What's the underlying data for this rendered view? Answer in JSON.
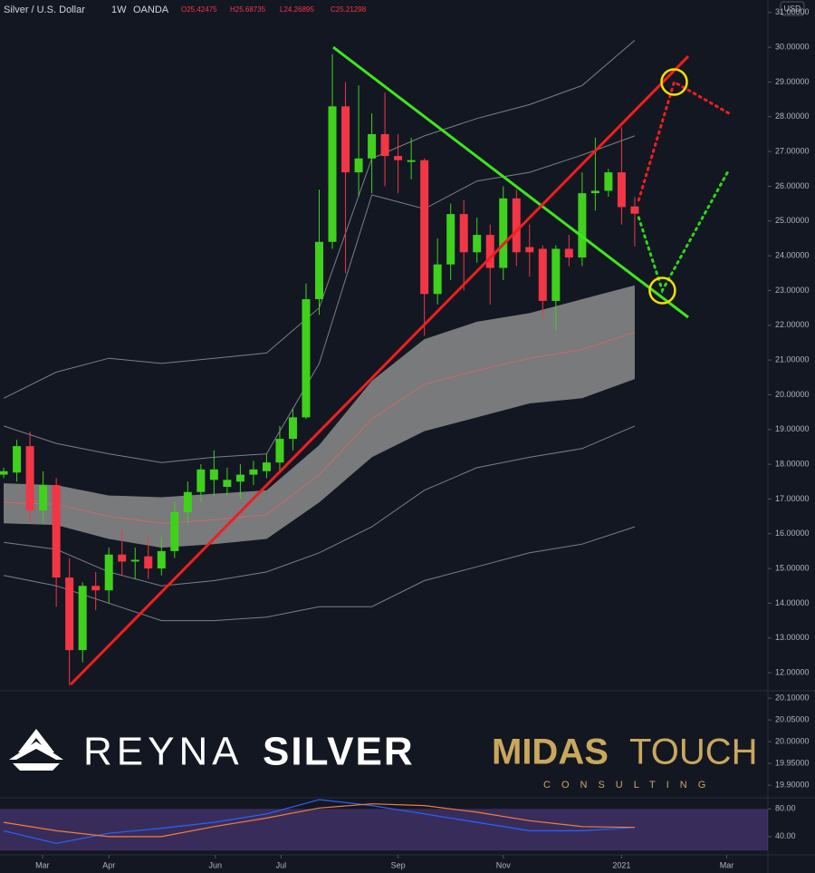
{
  "header": {
    "symbol": "Silver / U.S. Dollar",
    "interval": "1W",
    "source": "OANDA",
    "ohlc": [
      "O25.42475",
      "H25.68735",
      "L24.26895",
      "C25.21298"
    ]
  },
  "currency": "USD",
  "logos": {
    "reyna": [
      "REYNA",
      "SILVER"
    ],
    "midas": [
      "MIDAS",
      "TOUCH"
    ],
    "consulting": "CONSULTING"
  },
  "chart_data": [
    {
      "type": "candlestick",
      "up_color": "#3fd11c",
      "down_color": "#f23645",
      "open": [
        17.7,
        17.76,
        18.52,
        16.67,
        17.4,
        14.74,
        12.65,
        14.5,
        14.37,
        15.4,
        15.2,
        15.35,
        15.0,
        15.5,
        16.62,
        17.2,
        17.55,
        17.35,
        17.5,
        17.7,
        17.8,
        18.05,
        18.73,
        19.35,
        22.75,
        24.4,
        28.3,
        26.4,
        26.8,
        27.5,
        26.87,
        26.7,
        26.75,
        22.9,
        23.75,
        25.2,
        24.1,
        24.6,
        23.65,
        25.65,
        24.25,
        24.2,
        22.7,
        24.2,
        23.95,
        25.8,
        25.87,
        26.4,
        25.42
      ],
      "high": [
        17.9,
        18.7,
        18.94,
        17.8,
        17.6,
        15.3,
        14.6,
        14.9,
        15.6,
        16.1,
        15.6,
        15.9,
        15.9,
        16.9,
        17.5,
        18.0,
        18.4,
        17.9,
        18.0,
        18.1,
        18.3,
        19.1,
        19.6,
        23.2,
        25.9,
        29.8,
        29.0,
        28.9,
        28.1,
        28.7,
        27.5,
        27.4,
        26.8,
        24.5,
        25.5,
        25.6,
        25.1,
        24.9,
        26.0,
        25.9,
        24.9,
        24.3,
        24.3,
        24.6,
        26.4,
        27.4,
        26.5,
        27.7,
        25.69
      ],
      "low": [
        17.6,
        17.5,
        16.35,
        16.3,
        13.9,
        11.64,
        12.3,
        13.8,
        14.0,
        14.8,
        14.7,
        14.7,
        14.8,
        15.3,
        16.3,
        16.9,
        17.1,
        17.1,
        17.0,
        17.4,
        17.6,
        17.8,
        18.4,
        19.3,
        22.3,
        24.2,
        23.5,
        25.7,
        25.8,
        26.0,
        25.8,
        26.2,
        21.7,
        22.6,
        23.3,
        23.0,
        23.8,
        22.6,
        23.3,
        23.7,
        23.4,
        22.2,
        21.85,
        23.7,
        23.7,
        25.3,
        25.7,
        24.9,
        24.27
      ],
      "close": [
        17.8,
        18.52,
        16.67,
        17.4,
        14.74,
        12.65,
        14.5,
        14.37,
        15.4,
        15.2,
        15.25,
        15.0,
        15.5,
        16.62,
        17.2,
        17.85,
        17.85,
        17.55,
        17.7,
        17.85,
        18.05,
        18.73,
        19.35,
        22.75,
        24.4,
        28.3,
        26.4,
        26.8,
        27.5,
        26.87,
        26.75,
        26.75,
        22.9,
        23.75,
        25.2,
        24.1,
        24.6,
        23.65,
        25.65,
        24.1,
        24.1,
        22.7,
        24.2,
        23.95,
        25.8,
        25.87,
        26.4,
        25.4,
        25.21
      ],
      "xlim": [
        -0.28,
        58.13
      ],
      "ylim": [
        11.48,
        31.36
      ],
      "xticks": [
        {
          "value": 2.95,
          "label": "Mar"
        },
        {
          "value": 8.0,
          "label": "Apr"
        },
        {
          "value": 16.1,
          "label": "Jun"
        },
        {
          "value": 21.1,
          "label": "Jul"
        },
        {
          "value": 30.0,
          "label": "Sep"
        },
        {
          "value": 38.0,
          "label": "Nov"
        },
        {
          "value": 47.0,
          "label": "2021"
        },
        {
          "value": 55.0,
          "label": "Mar"
        }
      ],
      "yticks": [
        {
          "value": 12,
          "label": "12.00000"
        },
        {
          "value": 13,
          "label": "13.00000"
        },
        {
          "value": 14,
          "label": "14.00000"
        },
        {
          "value": 15,
          "label": "15.00000"
        },
        {
          "value": 16,
          "label": "16.00000"
        },
        {
          "value": 17,
          "label": "17.00000"
        },
        {
          "value": 18,
          "label": "18.00000"
        },
        {
          "value": 19,
          "label": "19.00000"
        },
        {
          "value": 20,
          "label": "20.00000"
        },
        {
          "value": 21,
          "label": "21.00000"
        },
        {
          "value": 22,
          "label": "22.00000"
        },
        {
          "value": 23,
          "label": "23.00000"
        },
        {
          "value": 24,
          "label": "24.00000"
        },
        {
          "value": 25,
          "label": "25.00000"
        },
        {
          "value": 26,
          "label": "26.00000"
        },
        {
          "value": 27,
          "label": "27.00000"
        },
        {
          "value": 28,
          "label": "28.00000"
        },
        {
          "value": 29,
          "label": "29.00000"
        },
        {
          "value": 30,
          "label": "30.00000"
        },
        {
          "value": 31,
          "label": "31.00000"
        }
      ],
      "band": {
        "color": "#8c8c8c",
        "x": [
          0,
          4,
          8,
          12,
          16,
          20,
          24,
          28,
          32,
          36,
          40,
          44,
          48
        ],
        "upper": [
          17.45,
          17.4,
          17.1,
          17.05,
          17.15,
          17.25,
          18.55,
          20.4,
          21.6,
          22.1,
          22.35,
          22.75,
          23.15
        ],
        "lower": [
          16.3,
          16.25,
          15.85,
          15.6,
          15.7,
          15.85,
          16.9,
          18.2,
          18.95,
          19.35,
          19.75,
          19.9,
          20.45
        ]
      },
      "overlays": [
        {
          "color": "#e06666",
          "x": [
            0,
            4,
            8,
            12,
            16,
            20,
            24,
            28,
            32,
            36,
            40,
            44,
            48
          ],
          "values": [
            16.9,
            16.85,
            16.5,
            16.3,
            16.4,
            16.55,
            17.7,
            19.3,
            20.3,
            20.7,
            21.05,
            21.3,
            21.8
          ]
        },
        {
          "color": "#9598a1",
          "x": [
            0,
            4,
            8,
            12,
            16,
            20,
            24,
            28,
            32,
            36,
            40,
            44,
            48
          ],
          "values": [
            19.9,
            20.65,
            21.05,
            20.9,
            21.05,
            21.2,
            22.5,
            26.8,
            27.45,
            27.95,
            28.35,
            28.9,
            30.2
          ]
        },
        {
          "color": "#9598a1",
          "x": [
            0,
            4,
            8,
            12,
            16,
            20,
            24,
            28,
            32,
            36,
            40,
            44,
            48
          ],
          "values": [
            19.1,
            18.6,
            18.3,
            18.05,
            18.2,
            18.3,
            20.9,
            25.75,
            25.35,
            26.15,
            26.4,
            26.9,
            27.45
          ]
        },
        {
          "color": "#9598a1",
          "x": [
            0,
            4,
            8,
            12,
            16,
            20,
            24,
            28,
            32,
            36,
            40,
            44,
            48
          ],
          "values": [
            15.75,
            15.55,
            14.9,
            14.5,
            14.65,
            14.9,
            15.45,
            16.2,
            17.25,
            17.9,
            18.2,
            18.45,
            19.1
          ]
        },
        {
          "color": "#9598a1",
          "x": [
            0,
            4,
            8,
            12,
            16,
            20,
            24,
            28,
            32,
            36,
            40,
            44,
            48
          ],
          "values": [
            14.8,
            14.5,
            14.0,
            13.5,
            13.5,
            13.6,
            13.9,
            13.9,
            14.65,
            15.05,
            15.45,
            15.7,
            16.2
          ]
        }
      ],
      "trendlines": [
        {
          "color": "#3ee61e",
          "dashed": false,
          "x": [
            25.07,
            52.07
          ],
          "values": [
            30.0,
            22.23
          ]
        },
        {
          "color": "#f01e1e",
          "dashed": false,
          "x": [
            5.09,
            52.07
          ],
          "values": [
            11.66,
            29.74
          ]
        },
        {
          "color": "#f01e1e",
          "dashed": true,
          "x": [
            48.3,
            51.0,
            55.17
          ],
          "values": [
            25.6,
            29.0,
            28.1
          ]
        },
        {
          "color": "#2ed61a",
          "dashed": true,
          "x": [
            48.3,
            50.1,
            55.2
          ],
          "values": [
            25.1,
            23.0,
            26.5
          ]
        }
      ],
      "markers": [
        {
          "color": "#f5e000",
          "x": 51.0,
          "value": 29.0
        },
        {
          "color": "#f5e000",
          "x": 50.1,
          "value": 23.0
        }
      ]
    },
    {
      "type": "line",
      "ylim": [
        19.871,
        20.117
      ],
      "yticks": [
        {
          "value": 20.1,
          "label": "20.10000"
        },
        {
          "value": 20.05,
          "label": "20.05000"
        },
        {
          "value": 20.0,
          "label": "20.00000"
        },
        {
          "value": 19.95,
          "label": "19.95000"
        },
        {
          "value": 19.9,
          "label": "19.90000"
        }
      ]
    },
    {
      "type": "line",
      "ylim": [
        15,
        96
      ],
      "yticks": [
        {
          "value": 80,
          "label": "80.00"
        },
        {
          "value": 40,
          "label": "40.00"
        }
      ],
      "shade": {
        "range": [
          20,
          80
        ],
        "color": "#7e57c2"
      },
      "x": [
        0,
        4,
        8,
        12,
        16,
        20,
        24,
        28,
        32,
        36,
        40,
        44,
        48
      ],
      "series": [
        {
          "color": "#2962ff",
          "values": [
            48.5,
            30.3,
            44.8,
            52.1,
            60.6,
            72.7,
            93.3,
            84.8,
            72.7,
            60.6,
            48.5,
            48.5,
            53.3
          ]
        },
        {
          "color": "#f57c3a",
          "values": [
            60.6,
            48.5,
            40,
            40,
            54.5,
            66.7,
            81.2,
            87.3,
            84.8,
            75.2,
            63,
            54.5,
            53.3
          ]
        }
      ]
    }
  ]
}
